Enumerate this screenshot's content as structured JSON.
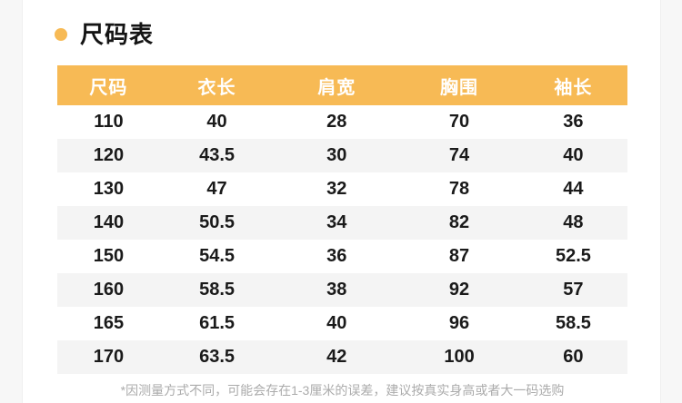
{
  "header": {
    "title": "尺码表",
    "bullet_icon": "circle-ring"
  },
  "size_table": {
    "columns": [
      "尺码",
      "衣长",
      "肩宽",
      "胸围",
      "袖长"
    ],
    "rows": [
      [
        "110",
        "40",
        "28",
        "70",
        "36"
      ],
      [
        "120",
        "43.5",
        "30",
        "74",
        "40"
      ],
      [
        "130",
        "47",
        "32",
        "78",
        "44"
      ],
      [
        "140",
        "50.5",
        "34",
        "82",
        "48"
      ],
      [
        "150",
        "54.5",
        "36",
        "87",
        "52.5"
      ],
      [
        "160",
        "58.5",
        "38",
        "92",
        "57"
      ],
      [
        "165",
        "61.5",
        "40",
        "96",
        "58.5"
      ],
      [
        "170",
        "63.5",
        "42",
        "100",
        "60"
      ]
    ]
  },
  "footnote": "*因测量方式不同，可能会存在1-3厘米的误差，建议按真实身高或者大一码选购",
  "colors": {
    "accent": "#F7BA55",
    "stripe": "#F4F4F4",
    "header_text": "#FFFFFF",
    "body_text": "#1A1A1A",
    "note_text": "#ABABAB"
  }
}
